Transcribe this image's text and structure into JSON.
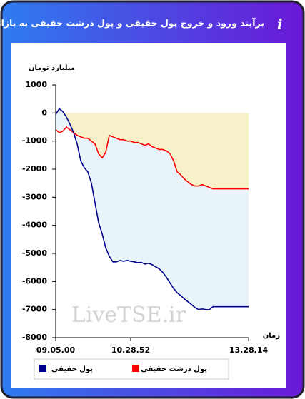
{
  "chart_data": {
    "type": "line",
    "title": "برآیند ورود و خروج پول حقیقی و پول درشت حقیقی به بازار",
    "y_label": "میلیارد تومان",
    "x_label": "زمان",
    "watermark": "LiveTSE.ir",
    "categories": [
      "09.05.00",
      null,
      null,
      null,
      null,
      null,
      null,
      null,
      null,
      null,
      null,
      null,
      null,
      null,
      null,
      null,
      null,
      null,
      null,
      null,
      null,
      "10.28.52",
      null,
      null,
      null,
      null,
      null,
      null,
      null,
      null,
      null,
      null,
      null,
      null,
      null,
      null,
      null,
      null,
      null,
      null,
      null,
      null,
      null,
      null,
      null,
      null,
      null,
      null,
      null,
      null,
      null,
      null,
      null,
      null,
      "13.28.14"
    ],
    "ylim": [
      -8000,
      1000
    ],
    "yticks": [
      1000,
      0,
      -1000,
      -2000,
      -3000,
      -4000,
      -5000,
      -6000,
      -7000,
      -8000
    ],
    "grid": false,
    "series": [
      {
        "name": "پول حقیقی",
        "color": "#00008b",
        "fill": "#e8f4fa",
        "values": [
          -50,
          150,
          50,
          -150,
          -400,
          -700,
          -1100,
          -1700,
          -1950,
          -2100,
          -2500,
          -3200,
          -3900,
          -4300,
          -4800,
          -5100,
          -5300,
          -5300,
          -5250,
          -5280,
          -5250,
          -5280,
          -5300,
          -5330,
          -5320,
          -5380,
          -5350,
          -5400,
          -5480,
          -5550,
          -5680,
          -5850,
          -6050,
          -6250,
          -6400,
          -6500,
          -6620,
          -6720,
          -6820,
          -6930,
          -7000,
          -6980,
          -7000,
          -7010,
          -6900,
          -6900,
          -6900,
          -6900,
          -6900,
          -6900,
          -6900,
          -6900,
          -6900,
          -6900,
          -6900
        ]
      },
      {
        "name": "پول درشت حقیقی",
        "color": "#ff0000",
        "fill": "#f6f1c9",
        "values": [
          -600,
          -700,
          -650,
          -500,
          -600,
          -700,
          -800,
          -850,
          -900,
          -900,
          -1000,
          -1100,
          -1450,
          -1600,
          -1400,
          -800,
          -850,
          -900,
          -950,
          -950,
          -1000,
          -1000,
          -1050,
          -1050,
          -1100,
          -1150,
          -1100,
          -1200,
          -1250,
          -1300,
          -1300,
          -1350,
          -1450,
          -1700,
          -2100,
          -2200,
          -2350,
          -2450,
          -2550,
          -2600,
          -2600,
          -2550,
          -2600,
          -2650,
          -2700,
          -2700,
          -2700,
          -2700,
          -2700,
          -2700,
          -2700,
          -2700,
          -2700,
          -2700,
          -2700
        ]
      }
    ]
  }
}
